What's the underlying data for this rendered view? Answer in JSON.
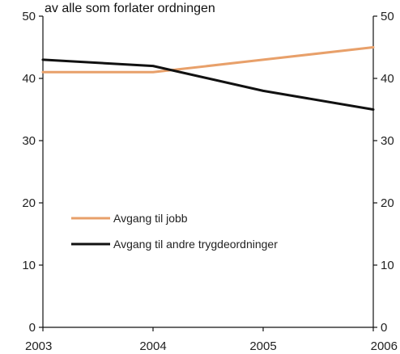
{
  "chart_data": {
    "type": "line",
    "title": "",
    "subtitle": "av alle som forlater ordningen",
    "xlabel": "",
    "ylabel": "",
    "x": [
      2003,
      2004,
      2005,
      2006
    ],
    "x_tick_labels": [
      "2003",
      "2004",
      "2005",
      "2006"
    ],
    "ylim": [
      0,
      50
    ],
    "y_ticks": [
      0,
      10,
      20,
      30,
      40,
      50
    ],
    "y_tick_labels": [
      "0",
      "10",
      "20",
      "30",
      "40",
      "50"
    ],
    "secondary_y_ticks": [
      0,
      10,
      20,
      30,
      40,
      50
    ],
    "secondary_y_tick_labels": [
      "0",
      "10",
      "20",
      "30",
      "40",
      "50"
    ],
    "grid": false,
    "legend_position": "lower-left",
    "series": [
      {
        "name": "Avgang til jobb",
        "values": [
          41,
          41,
          43,
          45
        ],
        "color": "#e8a06a"
      },
      {
        "name": "Avgang til andre trygdeordninger",
        "values": [
          43,
          42,
          38,
          35
        ],
        "color": "#111111"
      }
    ]
  }
}
